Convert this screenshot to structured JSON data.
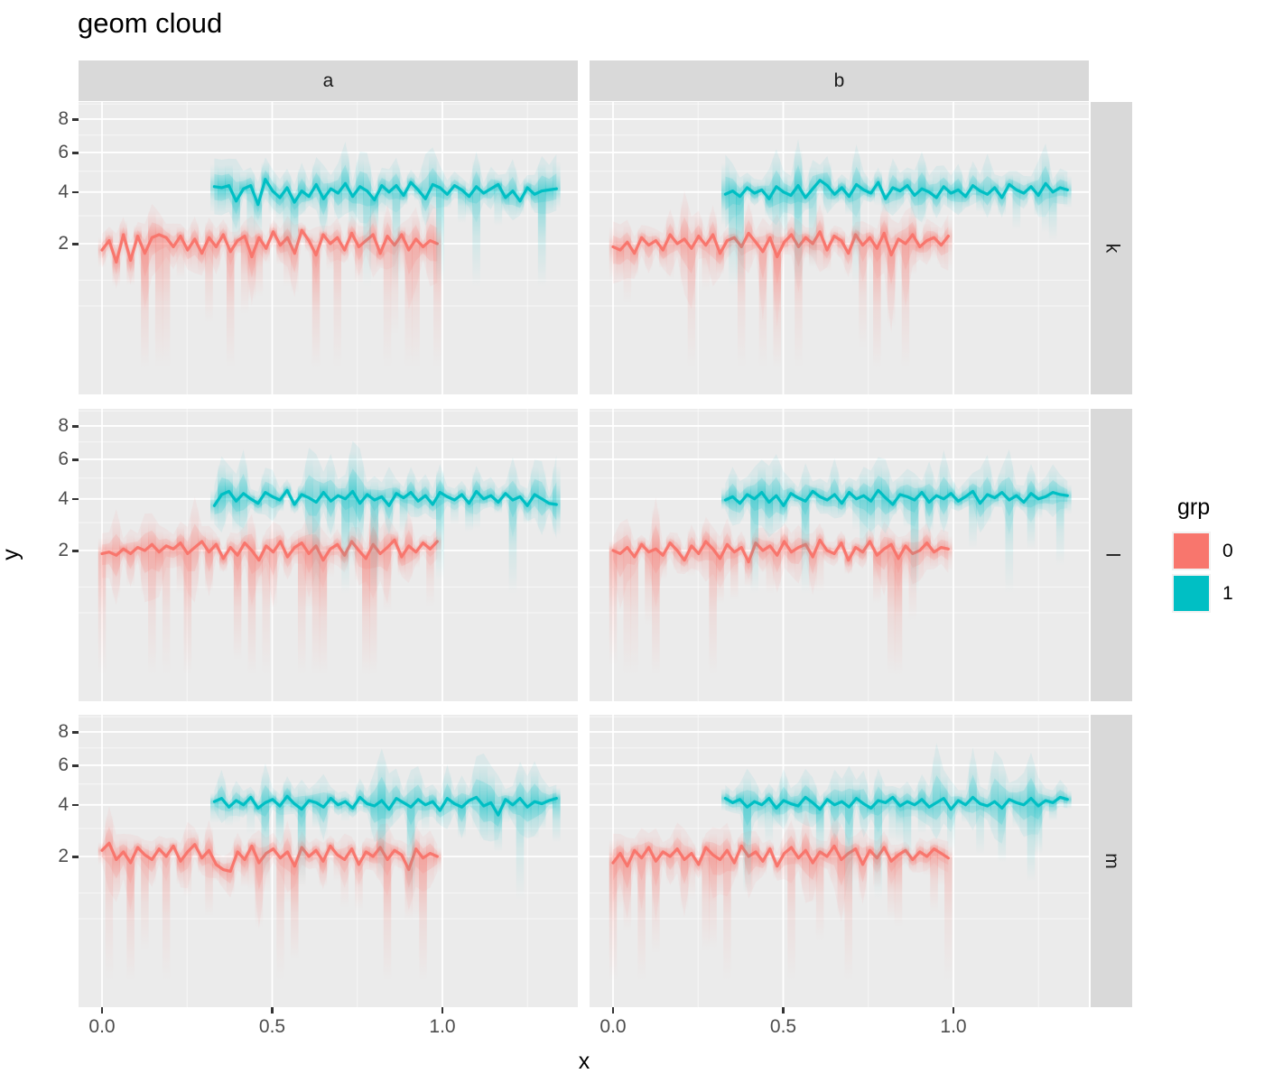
{
  "title": "geom cloud",
  "axes": {
    "x_label": "x",
    "y_label": "y",
    "x_tick_labels": [
      "0.0",
      "0.5",
      "1.0"
    ],
    "y_tick_labels": [
      "8",
      "6",
      "4",
      "2"
    ]
  },
  "facets": {
    "cols": [
      "a",
      "b"
    ],
    "rows": [
      "k",
      "l",
      "m"
    ]
  },
  "legend": {
    "title": "grp",
    "items": [
      {
        "label": "0",
        "color": "#F8766D"
      },
      {
        "label": "1",
        "color": "#00BFC4"
      }
    ]
  },
  "colors": {
    "panel_bg": "#EBEBEB",
    "strip_bg": "#D9D9D9",
    "grid_major": "#FFFFFF",
    "grid_minor": "#FFFFFF",
    "tick_text": "#4D4D4D",
    "tick_mark": "#333333",
    "red": "#F8766D",
    "teal": "#00BFC4"
  },
  "chart_data": {
    "type": "line",
    "title": "geom cloud",
    "xlabel": "x",
    "ylabel": "y",
    "y_scale": "sqrt",
    "x_ticks": [
      0,
      0.5,
      1.0
    ],
    "y_ticks": [
      2,
      4,
      6,
      8
    ],
    "x_minor": [
      0.25,
      0.75,
      1.25
    ],
    "y_minor": [
      9,
      7,
      5,
      3,
      1,
      0.5
    ],
    "x_domain_shown": [
      -0.07,
      1.4
    ],
    "y_domain_shown": [
      0,
      9.1
    ],
    "facet_cols": [
      "a",
      "b"
    ],
    "facet_rows": [
      "k",
      "l",
      "m"
    ],
    "legend_title": "grp",
    "groups": [
      {
        "grp": "0",
        "color": "#F8766D"
      },
      {
        "grp": "1",
        "color": "#00BFC4"
      }
    ],
    "cloud": {
      "red": {
        "up": 0.5,
        "down": 0.75,
        "streakAmp": 6.0,
        "streakPow": 6,
        "min_v": 0.0,
        "ribbon1": 0.16,
        "ribbon2": 0.07
      },
      "teal": {
        "up": 0.8,
        "down": 0.8,
        "streakAmp": 4.0,
        "streakPow": 6,
        "min_v": 0.85,
        "ribbon1": 0.16,
        "ribbon2": 0.07
      }
    },
    "panels": [
      {
        "col": "a",
        "row": "k",
        "series": [
          {
            "grp": "0",
            "ckey": "red",
            "seed": 1,
            "x0": 0.0,
            "x1": 0.985,
            "y": [
              1.8,
              2.1,
              1.45,
              2.3,
              1.5,
              2.25,
              1.7,
              2.2,
              2.3,
              2.2,
              1.9,
              2.25,
              1.8,
              2.15,
              1.7,
              2.2,
              1.9,
              2.3,
              1.75,
              2.1,
              2.25,
              1.6,
              2.2,
              1.85,
              2.4,
              1.95,
              2.2,
              1.7,
              2.45,
              2.1,
              1.65,
              2.3,
              2.0,
              2.2,
              1.8,
              2.35,
              1.9,
              2.1,
              2.3,
              1.7,
              2.25,
              1.95,
              2.3,
              1.8,
              2.15,
              1.9,
              2.1,
              2.0
            ]
          },
          {
            "grp": "1",
            "ckey": "teal",
            "seed": 2,
            "x0": 0.33,
            "x1": 1.335,
            "y": [
              4.25,
              4.2,
              4.3,
              3.6,
              4.15,
              4.3,
              3.45,
              4.6,
              4.05,
              3.75,
              4.2,
              3.55,
              4.05,
              3.8,
              4.35,
              3.7,
              4.15,
              3.95,
              4.4,
              3.8,
              4.25,
              4.05,
              3.65,
              4.3,
              4.0,
              4.3,
              3.85,
              4.45,
              4.1,
              3.7,
              4.35,
              4.2,
              3.9,
              4.3,
              4.1,
              3.8,
              4.25,
              3.95,
              4.15,
              4.35,
              3.75,
              4.05,
              3.6,
              4.2,
              3.9,
              4.05,
              4.1,
              4.15
            ]
          }
        ]
      },
      {
        "col": "b",
        "row": "k",
        "series": [
          {
            "grp": "0",
            "ckey": "red",
            "seed": 3,
            "x0": 0.0,
            "x1": 0.985,
            "y": [
              1.9,
              1.8,
              2.05,
              1.7,
              2.2,
              1.95,
              2.1,
              1.8,
              2.3,
              2.0,
              2.15,
              1.85,
              2.25,
              1.95,
              2.3,
              1.7,
              2.1,
              2.2,
              1.9,
              2.35,
              2.05,
              1.75,
              2.2,
              1.6,
              2.05,
              2.3,
              1.9,
              2.2,
              2.0,
              2.4,
              1.8,
              2.25,
              2.1,
              1.7,
              2.3,
              1.95,
              2.2,
              1.85,
              2.35,
              1.65,
              2.15,
              2.0,
              2.3,
              1.9,
              2.1,
              2.2,
              1.95,
              2.25
            ]
          },
          {
            "grp": "1",
            "ckey": "teal",
            "seed": 4,
            "x0": 0.33,
            "x1": 1.335,
            "y": [
              3.9,
              4.05,
              3.8,
              4.2,
              3.95,
              4.1,
              3.7,
              4.25,
              4.0,
              3.85,
              4.3,
              3.75,
              4.15,
              4.55,
              4.3,
              3.9,
              4.2,
              3.8,
              4.35,
              4.1,
              3.95,
              4.45,
              3.7,
              4.2,
              4.05,
              4.3,
              3.85,
              4.15,
              4.0,
              3.75,
              4.25,
              3.95,
              4.1,
              3.8,
              4.3,
              4.05,
              3.9,
              4.2,
              3.75,
              4.35,
              4.1,
              3.95,
              4.25,
              3.85,
              4.4,
              4.0,
              4.2,
              4.1
            ]
          }
        ]
      },
      {
        "col": "a",
        "row": "l",
        "series": [
          {
            "grp": "0",
            "ckey": "red",
            "seed": 5,
            "x0": 0.0,
            "x1": 0.985,
            "y": [
              1.9,
              1.95,
              1.85,
              2.05,
              1.9,
              2.1,
              2.0,
              2.2,
              1.95,
              2.15,
              2.05,
              2.25,
              1.9,
              2.1,
              2.3,
              1.95,
              2.2,
              1.75,
              2.1,
              1.85,
              2.25,
              2.0,
              1.7,
              2.15,
              1.95,
              2.3,
              1.8,
              2.1,
              2.25,
              1.9,
              2.15,
              1.7,
              2.05,
              2.2,
              1.85,
              2.3,
              2.0,
              1.75,
              2.2,
              1.9,
              2.1,
              2.35,
              1.8,
              2.15,
              1.95,
              2.25,
              2.05,
              2.3
            ]
          },
          {
            "grp": "1",
            "ckey": "teal",
            "seed": 6,
            "x0": 0.33,
            "x1": 1.335,
            "y": [
              3.7,
              4.2,
              4.35,
              3.9,
              4.25,
              4.0,
              3.8,
              4.3,
              4.1,
              3.95,
              4.4,
              3.75,
              4.2,
              4.05,
              3.85,
              4.3,
              3.9,
              4.15,
              4.0,
              4.35,
              3.8,
              4.2,
              3.95,
              4.1,
              3.7,
              4.25,
              4.05,
              4.3,
              3.9,
              4.15,
              3.75,
              4.3,
              4.1,
              3.95,
              4.2,
              3.8,
              4.35,
              4.0,
              4.15,
              3.85,
              4.25,
              3.95,
              4.1,
              3.7,
              4.2,
              4.0,
              3.8,
              3.75
            ]
          }
        ]
      },
      {
        "col": "b",
        "row": "l",
        "series": [
          {
            "grp": "0",
            "ckey": "red",
            "seed": 7,
            "x0": 0.0,
            "x1": 0.985,
            "y": [
              2.0,
              1.9,
              2.1,
              1.8,
              2.2,
              1.95,
              2.05,
              1.85,
              2.25,
              2.0,
              1.7,
              2.15,
              1.9,
              2.3,
              2.05,
              1.75,
              2.2,
              1.95,
              2.1,
              1.65,
              2.25,
              2.0,
              2.15,
              1.85,
              2.3,
              1.95,
              2.1,
              2.2,
              1.8,
              2.35,
              2.0,
              1.9,
              2.25,
              1.7,
              2.1,
              1.95,
              2.3,
              1.85,
              2.05,
              2.2,
              1.75,
              2.15,
              1.9,
              2.0,
              2.25,
              1.95,
              2.1,
              2.05
            ]
          },
          {
            "grp": "1",
            "ckey": "teal",
            "seed": 8,
            "x0": 0.33,
            "x1": 1.335,
            "y": [
              3.95,
              4.1,
              3.8,
              4.2,
              4.0,
              4.3,
              3.85,
              4.15,
              3.7,
              4.25,
              4.05,
              3.9,
              4.35,
              4.1,
              3.95,
              4.2,
              3.8,
              4.3,
              4.0,
              4.15,
              3.9,
              4.4,
              4.05,
              3.75,
              4.2,
              4.1,
              3.95,
              4.3,
              3.85,
              4.15,
              4.0,
              4.25,
              3.9,
              4.1,
              4.35,
              3.8,
              4.2,
              4.05,
              4.3,
              3.95,
              4.15,
              3.85,
              4.25,
              4.0,
              4.1,
              4.3,
              4.2,
              4.15
            ]
          }
        ]
      },
      {
        "col": "a",
        "row": "m",
        "series": [
          {
            "grp": "0",
            "ckey": "red",
            "seed": 9,
            "x0": 0.0,
            "x1": 0.985,
            "y": [
              2.2,
              2.45,
              1.9,
              2.15,
              1.8,
              2.3,
              2.05,
              1.9,
              2.25,
              2.0,
              2.35,
              1.85,
              2.15,
              2.4,
              1.95,
              2.2,
              1.75,
              1.6,
              1.55,
              2.15,
              1.9,
              2.35,
              1.8,
              2.1,
              2.25,
              1.95,
              2.15,
              1.7,
              2.3,
              2.0,
              2.2,
              1.85,
              2.35,
              2.05,
              1.9,
              2.25,
              1.75,
              2.15,
              2.0,
              2.3,
              1.9,
              2.2,
              2.05,
              1.6,
              2.25,
              1.95,
              2.1,
              2.0
            ]
          },
          {
            "grp": "1",
            "ckey": "teal",
            "seed": 10,
            "x0": 0.33,
            "x1": 1.335,
            "y": [
              4.15,
              4.3,
              3.9,
              4.2,
              4.0,
              4.35,
              3.85,
              4.1,
              4.25,
              3.95,
              4.4,
              4.05,
              3.8,
              4.2,
              4.1,
              3.9,
              4.3,
              4.0,
              4.15,
              3.85,
              4.35,
              4.05,
              3.95,
              4.2,
              3.8,
              4.3,
              4.1,
              3.9,
              4.25,
              4.0,
              4.15,
              3.75,
              4.3,
              4.05,
              3.9,
              4.2,
              4.35,
              3.95,
              4.1,
              3.55,
              4.25,
              4.0,
              4.3,
              3.9,
              4.15,
              4.05,
              4.2,
              4.3
            ]
          }
        ]
      },
      {
        "col": "b",
        "row": "m",
        "series": [
          {
            "grp": "0",
            "ckey": "red",
            "seed": 11,
            "x0": 0.0,
            "x1": 0.985,
            "y": [
              1.8,
              2.1,
              1.7,
              2.2,
              1.95,
              2.3,
              1.85,
              2.15,
              2.0,
              2.25,
              1.9,
              2.1,
              1.75,
              2.3,
              2.05,
              1.9,
              2.2,
              1.8,
              2.35,
              2.0,
              2.15,
              1.85,
              2.25,
              1.7,
              2.1,
              2.3,
              1.95,
              2.2,
              1.8,
              2.15,
              2.0,
              2.35,
              1.9,
              2.1,
              2.25,
              1.75,
              2.2,
              1.95,
              2.3,
              1.85,
              2.05,
              2.2,
              1.9,
              2.15,
              2.0,
              2.25,
              2.1,
              1.95
            ]
          },
          {
            "grp": "1",
            "ckey": "teal",
            "seed": 12,
            "x0": 0.33,
            "x1": 1.335,
            "y": [
              4.3,
              4.1,
              4.25,
              3.9,
              4.15,
              4.0,
              4.3,
              3.85,
              4.2,
              4.05,
              3.95,
              4.35,
              4.1,
              3.8,
              4.25,
              4.0,
              4.15,
              3.9,
              4.3,
              4.05,
              3.85,
              4.2,
              4.1,
              4.35,
              3.95,
              4.15,
              4.0,
              4.25,
              3.9,
              4.1,
              4.3,
              3.8,
              4.2,
              4.0,
              4.35,
              4.05,
              3.95,
              4.15,
              3.85,
              4.25,
              4.1,
              4.0,
              4.3,
              3.95,
              4.2,
              4.1,
              4.35,
              4.25
            ]
          }
        ]
      }
    ]
  }
}
